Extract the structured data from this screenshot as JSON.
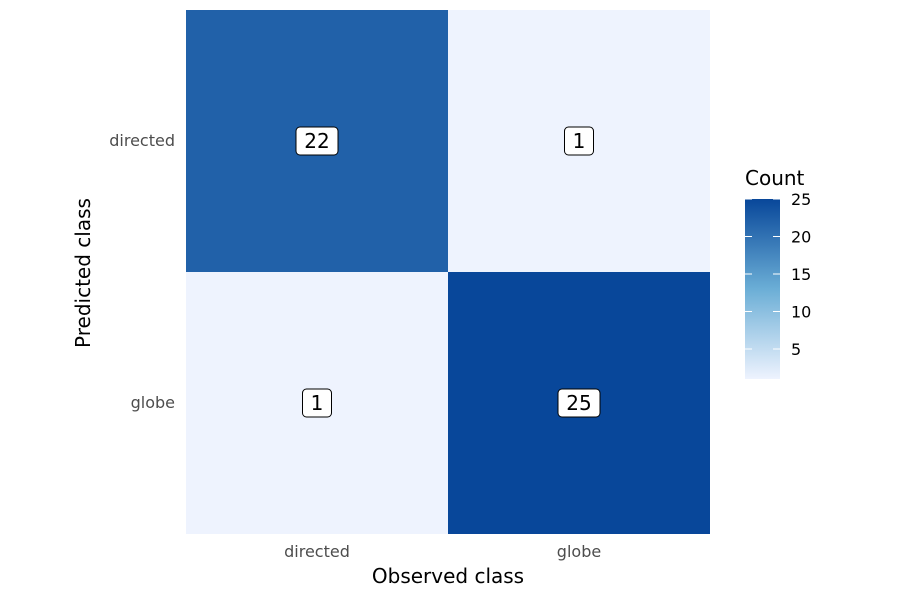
{
  "chart_data": {
    "type": "heatmap",
    "xlabel": "Observed class",
    "ylabel": "Predicted class",
    "x_categories": [
      "directed",
      "globe"
    ],
    "y_categories": [
      "directed",
      "globe"
    ],
    "cells": [
      {
        "observed": "directed",
        "predicted": "directed",
        "value": 22
      },
      {
        "observed": "globe",
        "predicted": "directed",
        "value": 1
      },
      {
        "observed": "directed",
        "predicted": "globe",
        "value": 1
      },
      {
        "observed": "globe",
        "predicted": "globe",
        "value": 25
      }
    ],
    "legend": {
      "title": "Count",
      "placement": "right",
      "range": [
        1,
        25
      ],
      "ticks": [
        5,
        10,
        15,
        20,
        25
      ]
    },
    "colors": {
      "low": "#eef3fe",
      "mid": "#6baed6",
      "high": "#08479a"
    },
    "grid": false
  }
}
